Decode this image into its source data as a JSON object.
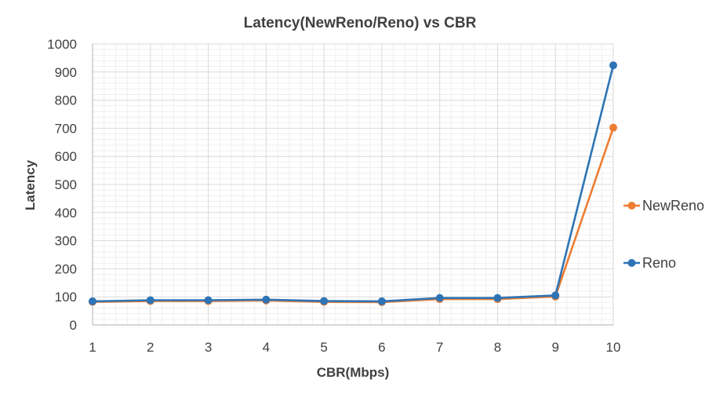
{
  "chart_data": {
    "type": "line",
    "title": "Latency(NewReno/Reno) vs CBR",
    "xlabel": "CBR(Mbps)",
    "ylabel": "Latency",
    "x": [
      1,
      2,
      3,
      4,
      5,
      6,
      7,
      8,
      9,
      10
    ],
    "ylim": [
      0,
      1000
    ],
    "yticks": [
      0,
      100,
      200,
      300,
      400,
      500,
      600,
      700,
      800,
      900,
      1000
    ],
    "grid": true,
    "legend_position": "right",
    "series": [
      {
        "name": "NewReno",
        "color": "#ED7D31",
        "values": [
          82,
          85,
          85,
          87,
          82,
          81,
          92,
          92,
          101,
          702
        ]
      },
      {
        "name": "Reno",
        "color": "#2E74B5",
        "values": [
          84,
          88,
          88,
          90,
          85,
          84,
          96,
          96,
          105,
          924
        ]
      }
    ]
  }
}
